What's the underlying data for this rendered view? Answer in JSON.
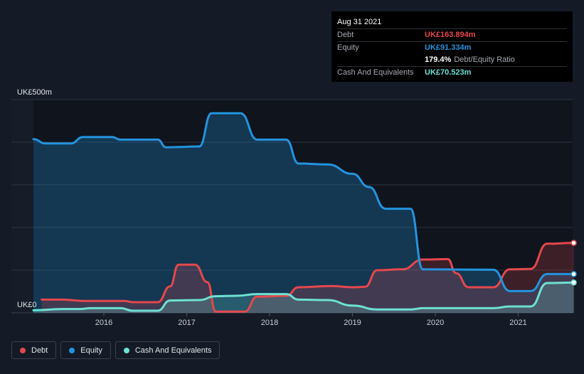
{
  "colors": {
    "background": "#151b26",
    "debt": "#e5484d",
    "equity": "#2394df",
    "cash": "#6ee1d2",
    "grid": "#2c333f"
  },
  "tooltip": {
    "date": "Aug 31 2021",
    "rows": [
      {
        "label": "Debt",
        "value": "UK£163.894m",
        "color": "#e5484d"
      },
      {
        "label": "Equity",
        "value": "UK£91.334m",
        "color": "#2394df"
      },
      {
        "label": "",
        "value": "179.4%",
        "extra": "Debt/Equity Ratio",
        "color": "#ffffff"
      },
      {
        "label": "Cash And Equivalents",
        "value": "UK£70.523m",
        "color": "#6ee1d2"
      }
    ]
  },
  "legend": [
    {
      "label": "Debt",
      "color": "#e5484d"
    },
    {
      "label": "Equity",
      "color": "#2394df"
    },
    {
      "label": "Cash And Equivalents",
      "color": "#6ee1d2"
    }
  ],
  "chart_data": {
    "type": "area",
    "y_top_label": "UK£500m",
    "y_bottom_label": "UK£0",
    "ylim": [
      0,
      500
    ],
    "xlim": [
      2015.0,
      2021.75
    ],
    "x_ticks": [
      "2016",
      "2017",
      "2018",
      "2019",
      "2020",
      "2021"
    ],
    "grid": true,
    "legend_position": "bottom-left",
    "series": [
      {
        "name": "Debt",
        "color": "#e5484d",
        "points": [
          [
            2015.25,
            31
          ],
          [
            2015.5,
            31
          ],
          [
            2015.75,
            28
          ],
          [
            2016.0,
            28
          ],
          [
            2016.25,
            28
          ],
          [
            2016.35,
            25
          ],
          [
            2016.65,
            25
          ],
          [
            2016.8,
            62
          ],
          [
            2016.9,
            113
          ],
          [
            2017.1,
            113
          ],
          [
            2017.25,
            72
          ],
          [
            2017.35,
            3
          ],
          [
            2017.7,
            3
          ],
          [
            2017.85,
            38
          ],
          [
            2018.2,
            40
          ],
          [
            2018.35,
            60
          ],
          [
            2018.75,
            63
          ],
          [
            2019.0,
            60
          ],
          [
            2019.15,
            61
          ],
          [
            2019.3,
            100
          ],
          [
            2019.6,
            102
          ],
          [
            2019.85,
            125
          ],
          [
            2020.15,
            126
          ],
          [
            2020.25,
            93
          ],
          [
            2020.4,
            60
          ],
          [
            2020.7,
            60
          ],
          [
            2020.9,
            102
          ],
          [
            2021.15,
            103
          ],
          [
            2021.35,
            162
          ],
          [
            2021.67,
            164
          ]
        ]
      },
      {
        "name": "Equity",
        "color": "#2394df",
        "points": [
          [
            2015.15,
            407
          ],
          [
            2015.3,
            397
          ],
          [
            2015.6,
            397
          ],
          [
            2015.75,
            412
          ],
          [
            2016.1,
            412
          ],
          [
            2016.2,
            406
          ],
          [
            2016.65,
            406
          ],
          [
            2016.75,
            388
          ],
          [
            2017.15,
            390
          ],
          [
            2017.3,
            468
          ],
          [
            2017.65,
            468
          ],
          [
            2017.85,
            406
          ],
          [
            2018.2,
            406
          ],
          [
            2018.35,
            350
          ],
          [
            2018.7,
            348
          ],
          [
            2019.0,
            326
          ],
          [
            2019.2,
            295
          ],
          [
            2019.4,
            244
          ],
          [
            2019.7,
            244
          ],
          [
            2019.85,
            102
          ],
          [
            2020.7,
            101
          ],
          [
            2020.9,
            51
          ],
          [
            2021.15,
            51
          ],
          [
            2021.35,
            91
          ],
          [
            2021.67,
            91
          ]
        ]
      },
      {
        "name": "Cash And Equivalents",
        "color": "#6ee1d2",
        "points": [
          [
            2015.15,
            6
          ],
          [
            2015.5,
            9
          ],
          [
            2015.7,
            9
          ],
          [
            2015.85,
            11
          ],
          [
            2016.2,
            11
          ],
          [
            2016.35,
            5
          ],
          [
            2016.65,
            5
          ],
          [
            2016.8,
            29
          ],
          [
            2017.15,
            30
          ],
          [
            2017.35,
            39
          ],
          [
            2017.6,
            40
          ],
          [
            2017.85,
            44
          ],
          [
            2018.2,
            44
          ],
          [
            2018.35,
            31
          ],
          [
            2018.7,
            30
          ],
          [
            2019.0,
            17
          ],
          [
            2019.3,
            8
          ],
          [
            2019.7,
            8
          ],
          [
            2019.85,
            11
          ],
          [
            2020.7,
            11
          ],
          [
            2020.9,
            15
          ],
          [
            2021.15,
            15
          ],
          [
            2021.35,
            70
          ],
          [
            2021.67,
            71
          ]
        ]
      }
    ]
  }
}
